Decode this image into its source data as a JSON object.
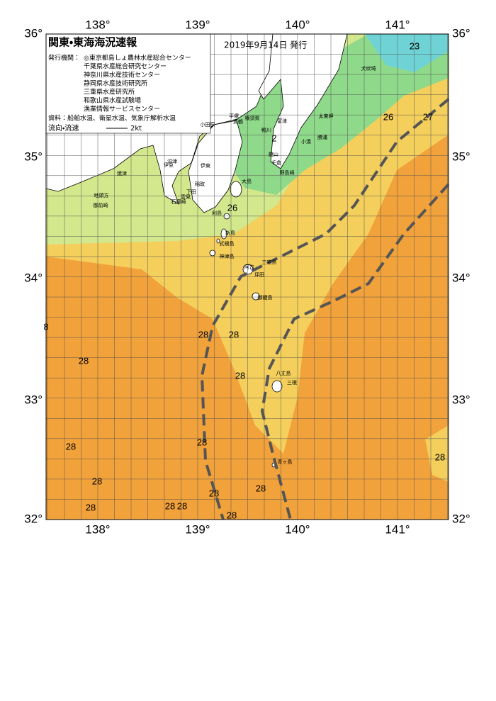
{
  "header": {
    "title": "関東・東海海況速報",
    "date": "2019年9月14日 発行",
    "issuers_label": "発行機関：",
    "issuers": [
      "◎東京都島しょ農林水産総合センター",
      "千葉県水産総合研究センター",
      "神奈川県水産技術センター",
      "静岡県水産技術研究所",
      "三重県水産研究所",
      "和歌山県水産試験場",
      "漁業情報サービスセンター"
    ],
    "source": "資料：船舶水温、衛星水温、気象庁解析水温",
    "legend_label": "流向・流速",
    "legend_speed": "2kt"
  },
  "map": {
    "lon_labels": [
      "138°",
      "139°",
      "140°",
      "141°"
    ],
    "lat_labels": [
      "36°",
      "35°",
      "34°",
      "33°",
      "32°"
    ],
    "place_names": [
      "小田原",
      "平塚",
      "横須賀",
      "富津",
      "館山",
      "千倉",
      "野島崎",
      "太東岬",
      "勝浦",
      "小湊",
      "犬吠埼",
      "伊東",
      "稲取",
      "下田",
      "雲見",
      "石廊崎",
      "伊豆",
      "沼津",
      "焼津",
      "御前崎",
      "地頭方",
      "大島",
      "利島",
      "新島",
      "式根島",
      "神津島",
      "三宅島",
      "御蔵島",
      "八丈島",
      "三根",
      "青ヶ島",
      "鴨川",
      "真鶴",
      "坪田",
      "阿古"
    ],
    "temperature_labels": [
      23,
      26,
      27,
      2,
      26,
      28,
      28,
      28,
      28,
      28,
      28,
      28,
      28,
      28,
      28,
      28,
      28,
      28,
      28,
      8
    ]
  }
}
